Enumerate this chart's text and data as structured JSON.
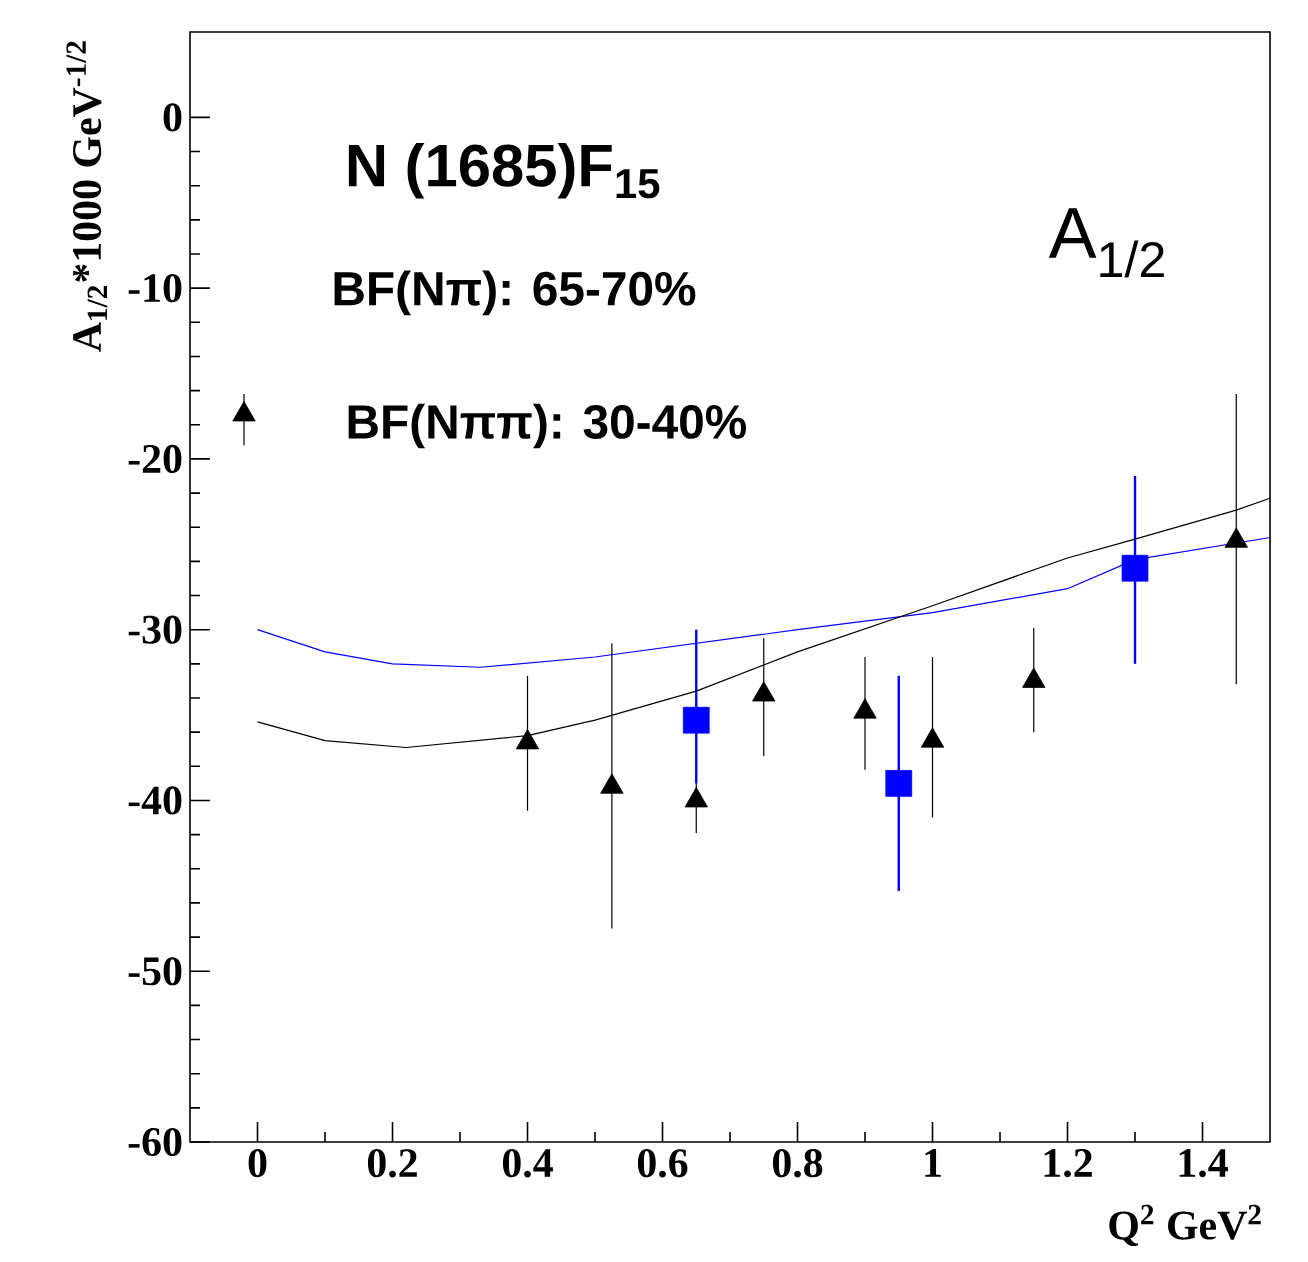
{
  "chart_data": {
    "type": "scatter",
    "xlabel": "Q$^{2}$ GeV$^{2}$",
    "ylabel": "A$_{1/2}$*1000 GeV$^{-1/2}$",
    "annotations": [
      "N (1685)F$_{15}$",
      "BF(Nπ): 65-70%",
      "BF(Nππ): 30-40%",
      "A$_{1/2}$"
    ],
    "xlim": [
      -0.1,
      1.5
    ],
    "ylim": [
      -60,
      5
    ],
    "xticks": [
      0,
      0.2,
      0.4,
      0.6,
      0.8,
      1,
      1.2,
      1.4
    ],
    "yticks": [
      -60,
      -50,
      -40,
      -30,
      -20,
      -10,
      0
    ],
    "series": [
      {
        "marker": "triangle",
        "color": "#000000",
        "x": [
          0.4,
          0.525,
          0.65,
          0.75,
          0.9,
          1.0,
          1.15,
          1.45
        ],
        "values": [
          -36.6,
          -39.2,
          -40.0,
          -33.8,
          -34.8,
          -36.5,
          -33.0,
          -24.8
        ],
        "errors": [
          [
            -40.6,
            -32.7
          ],
          [
            -47.5,
            -30.8
          ],
          [
            -41.9,
            -38.7
          ],
          [
            -37.4,
            -30.5
          ],
          [
            -38.2,
            -31.6
          ],
          [
            -41.0,
            -31.6
          ],
          [
            -36.0,
            -29.9
          ],
          [
            -33.2,
            -16.2
          ]
        ]
      },
      {
        "marker": "square",
        "color": "#0000ff",
        "x": [
          0.65,
          0.95,
          1.3
        ],
        "values": [
          -35.3,
          -39.0,
          -26.4
        ],
        "errors": [
          [
            -39.0,
            -30.0
          ],
          [
            -45.3,
            -32.7
          ],
          [
            -32.0,
            -21.0
          ]
        ]
      },
      {
        "type": "line",
        "marker": "none",
        "color": "#0000ff",
        "x": [
          0,
          0.1,
          0.2,
          0.33,
          0.5,
          0.65,
          0.8,
          1.0,
          1.2,
          1.3,
          1.5
        ],
        "values": [
          -30.0,
          -31.3,
          -32.0,
          -32.2,
          -31.6,
          -30.8,
          -30.0,
          -29.0,
          -27.6,
          -25.9,
          -24.6
        ]
      },
      {
        "type": "line",
        "marker": "none",
        "color": "#000000",
        "x": [
          0,
          0.1,
          0.22,
          0.4,
          0.5,
          0.65,
          0.8,
          1.0,
          1.2,
          1.3,
          1.45,
          1.5
        ],
        "values": [
          -35.4,
          -36.5,
          -36.9,
          -36.2,
          -35.3,
          -33.6,
          -31.3,
          -28.6,
          -25.8,
          -24.7,
          -23.0,
          -22.3
        ]
      },
      {
        "marker": "triangle",
        "color": "#000000",
        "x": [
          -0.02
        ],
        "values": [
          -17.4
        ],
        "errors": [
          [
            -19.2,
            -16.2
          ]
        ]
      }
    ]
  }
}
